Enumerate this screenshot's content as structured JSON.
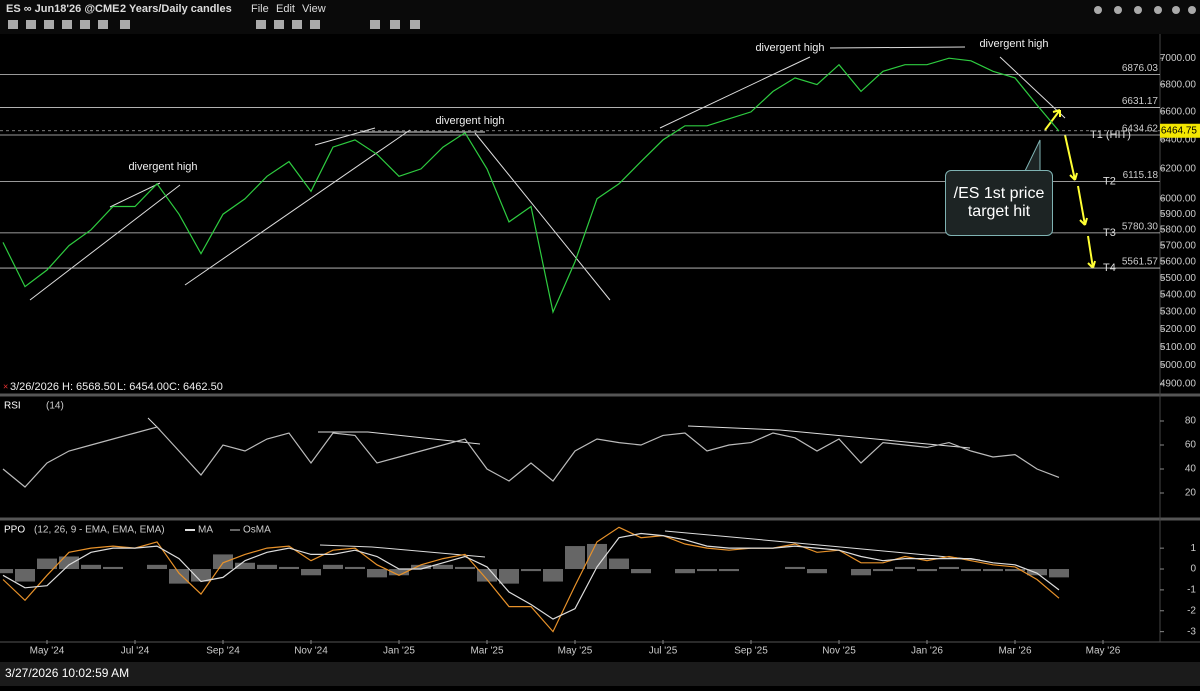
{
  "toolbar": {
    "symbol": "ES ∞ Jun18'26 @CME",
    "timeframe": "2 Years/Daily candles",
    "menus": [
      "File",
      "Edit",
      "View"
    ]
  },
  "status_bar": "3/27/2026 10:02:59 AM",
  "chart_data": [
    {
      "type": "line",
      "color": "#2ecc40",
      "log_scale": true,
      "ylim": [
        4850,
        7180
      ],
      "yticks": [
        {
          "value": 4900,
          "label": "4900.00"
        },
        {
          "value": 5000,
          "label": "5000.00"
        },
        {
          "value": 5100,
          "label": "5100.00"
        },
        {
          "value": 5200,
          "label": "5200.00"
        },
        {
          "value": 5300,
          "label": "5300.00"
        },
        {
          "value": 5400,
          "label": "5400.00"
        },
        {
          "value": 5500,
          "label": "5500.00"
        },
        {
          "value": 5600,
          "label": "5600.00"
        },
        {
          "value": 5700,
          "label": "5700.00"
        },
        {
          "value": 5800,
          "label": "5800.00"
        },
        {
          "value": 5900,
          "label": "5900.00"
        },
        {
          "value": 6000,
          "label": "6000.00"
        },
        {
          "value": 6200,
          "label": "6200.00"
        },
        {
          "value": 6400,
          "label": "6400.00"
        },
        {
          "value": 6600,
          "label": "6600.00"
        },
        {
          "value": 6800,
          "label": "6800.00"
        },
        {
          "value": 7000,
          "label": "7000.00"
        }
      ],
      "values": [
        5720,
        5450,
        5550,
        5700,
        5800,
        5950,
        5950,
        6100,
        5900,
        5650,
        5900,
        6000,
        6150,
        6250,
        6050,
        6350,
        6400,
        6300,
        6150,
        6200,
        6350,
        6450,
        6200,
        5850,
        5950,
        5300,
        5600,
        6000,
        6100,
        6250,
        6400,
        6500,
        6500,
        6550,
        6600,
        6750,
        6850,
        6800,
        6950,
        6750,
        6900,
        6950,
        6950,
        7000,
        6980,
        6900,
        6850,
        6650,
        6462.5,
        null,
        null,
        null,
        null
      ],
      "levels": [
        6876.03,
        6631.17,
        6434.62,
        6115.18,
        {
          "value": 5780.3,
          "label": "5780.30"
        },
        5561.57
      ],
      "targets": [
        "T1 (HIT)",
        "T2",
        "T3",
        "T4"
      ],
      "last_price": 6464.75,
      "info": {
        "date": "3/26/2026",
        "high": {
          "value": 6568.5,
          "label": "H: 6568.50"
        },
        "low": {
          "value": 6454,
          "label": "L: 6454.00"
        },
        "close": {
          "value": 6462.5,
          "label": "C: 6462.50"
        }
      },
      "annotations": [
        "divergent high",
        "divergent high",
        "divergent high",
        "divergent high",
        "/ES 1st price target hit"
      ]
    },
    {
      "type": "line",
      "title": "RSI",
      "params": "(14)",
      "color": "#bbbbbb",
      "ylim": [
        0,
        100
      ],
      "yticks": [
        20,
        40,
        60,
        80
      ],
      "values": [
        40,
        25,
        45,
        55,
        60,
        65,
        70,
        75,
        55,
        35,
        60,
        55,
        65,
        70,
        45,
        70,
        68,
        45,
        50,
        55,
        60,
        65,
        40,
        30,
        45,
        30,
        55,
        65,
        62,
        60,
        68,
        70,
        55,
        60,
        62,
        70,
        66,
        55,
        65,
        45,
        62,
        60,
        58,
        62,
        55,
        50,
        52,
        40,
        33,
        null,
        null,
        null,
        null
      ]
    },
    {
      "type": "line",
      "params": "(12, 26, 9 - EMA, EMA, EMA)",
      "ylim": [
        -3.4,
        2.3
      ],
      "yticks": [
        -3,
        -2,
        -1,
        0,
        1
      ],
      "categories": [
        null,
        null,
        "May '24",
        null,
        null,
        null,
        "Jul '24",
        null,
        null,
        null,
        "Sep '24",
        null,
        null,
        null,
        "Nov '24",
        null,
        null,
        null,
        "Jan '25",
        null,
        null,
        null,
        "Mar '25",
        null,
        null,
        null,
        "May '25",
        null,
        null,
        null,
        "Jul '25",
        null,
        null,
        null,
        "Sep '25",
        null,
        null,
        null,
        "Nov '25",
        null,
        null,
        null,
        "Jan '26",
        null,
        null,
        null,
        "Mar '26",
        null,
        null,
        null,
        "May '26",
        null,
        null
      ],
      "series": [
        {
          "name": "PPO",
          "color": "#e8922a",
          "values": [
            -0.5,
            -1.5,
            -0.3,
            0.8,
            1.0,
            1.1,
            1.0,
            1.3,
            -0.2,
            -1.2,
            0.3,
            0.7,
            1.0,
            1.1,
            0.4,
            0.9,
            1.0,
            0.2,
            -0.3,
            0.2,
            0.5,
            0.7,
            -0.5,
            -1.8,
            -1.8,
            -3.0,
            -0.8,
            1.3,
            2.0,
            1.5,
            1.6,
            1.2,
            1.0,
            0.9,
            1.0,
            1.0,
            1.2,
            0.8,
            0.9,
            0.3,
            0.3,
            0.6,
            0.4,
            0.6,
            0.4,
            0.2,
            0.1,
            -0.5,
            -1.4,
            null,
            null,
            null,
            null
          ]
        },
        {
          "name": "MA",
          "color": "#dddddd",
          "values": [
            -0.3,
            -0.9,
            -0.8,
            0.2,
            0.8,
            1.0,
            1.0,
            1.1,
            0.5,
            -0.6,
            -0.4,
            0.4,
            0.8,
            1.0,
            0.7,
            0.7,
            0.9,
            0.6,
            0.0,
            0.0,
            0.3,
            0.6,
            0.1,
            -1.1,
            -1.7,
            -2.4,
            -1.9,
            0.1,
            1.5,
            1.7,
            1.6,
            1.4,
            1.1,
            1.0,
            1.0,
            1.0,
            1.1,
            1.0,
            0.9,
            0.6,
            0.4,
            0.5,
            0.5,
            0.5,
            0.5,
            0.3,
            0.2,
            -0.2,
            -1.0,
            null,
            null,
            null,
            null
          ]
        },
        {
          "name": "OsMA",
          "color": "#666666",
          "kind": "bar",
          "values": [
            -0.2,
            -0.6,
            0.5,
            0.6,
            0.2,
            0.1,
            0.0,
            0.2,
            -0.7,
            -0.6,
            0.7,
            0.3,
            0.2,
            0.1,
            -0.3,
            0.2,
            0.1,
            -0.4,
            -0.3,
            0.2,
            0.2,
            0.1,
            -0.6,
            -0.7,
            -0.1,
            -0.6,
            1.1,
            1.2,
            0.5,
            -0.2,
            0.0,
            -0.2,
            -0.1,
            -0.1,
            0.0,
            0.0,
            0.1,
            -0.2,
            0.0,
            -0.3,
            -0.1,
            0.1,
            -0.1,
            0.1,
            -0.1,
            -0.1,
            -0.1,
            -0.3,
            -0.4,
            null,
            null,
            null,
            null
          ]
        }
      ]
    }
  ]
}
